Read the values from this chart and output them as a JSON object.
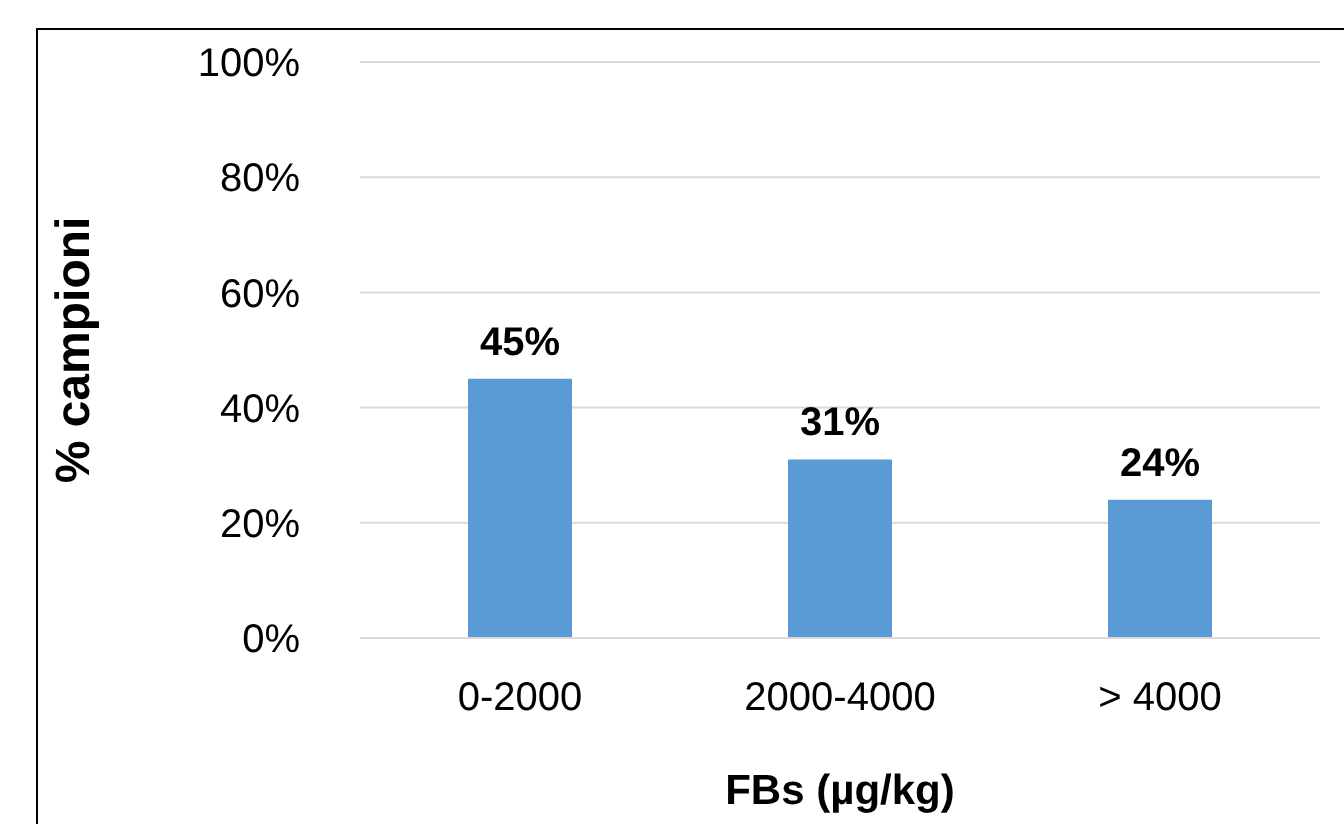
{
  "chart_data": {
    "type": "bar",
    "categories": [
      "0-2000",
      "2000-4000",
      "> 4000"
    ],
    "values": [
      45,
      31,
      24
    ],
    "value_labels": [
      "45%",
      "31%",
      "24%"
    ],
    "color": "#5b9bd5",
    "xlabel": "FBs (µg/kg)",
    "ylabel": "% campioni",
    "ylim": [
      0,
      100
    ],
    "yticks": [
      {
        "value": 0,
        "label": "0%"
      },
      {
        "value": 20,
        "label": "20%"
      },
      {
        "value": 40,
        "label": "40%"
      },
      {
        "value": 60,
        "label": "60%"
      },
      {
        "value": 80,
        "label": "80%"
      },
      {
        "value": 100,
        "label": "100%"
      }
    ],
    "grid": "y"
  }
}
